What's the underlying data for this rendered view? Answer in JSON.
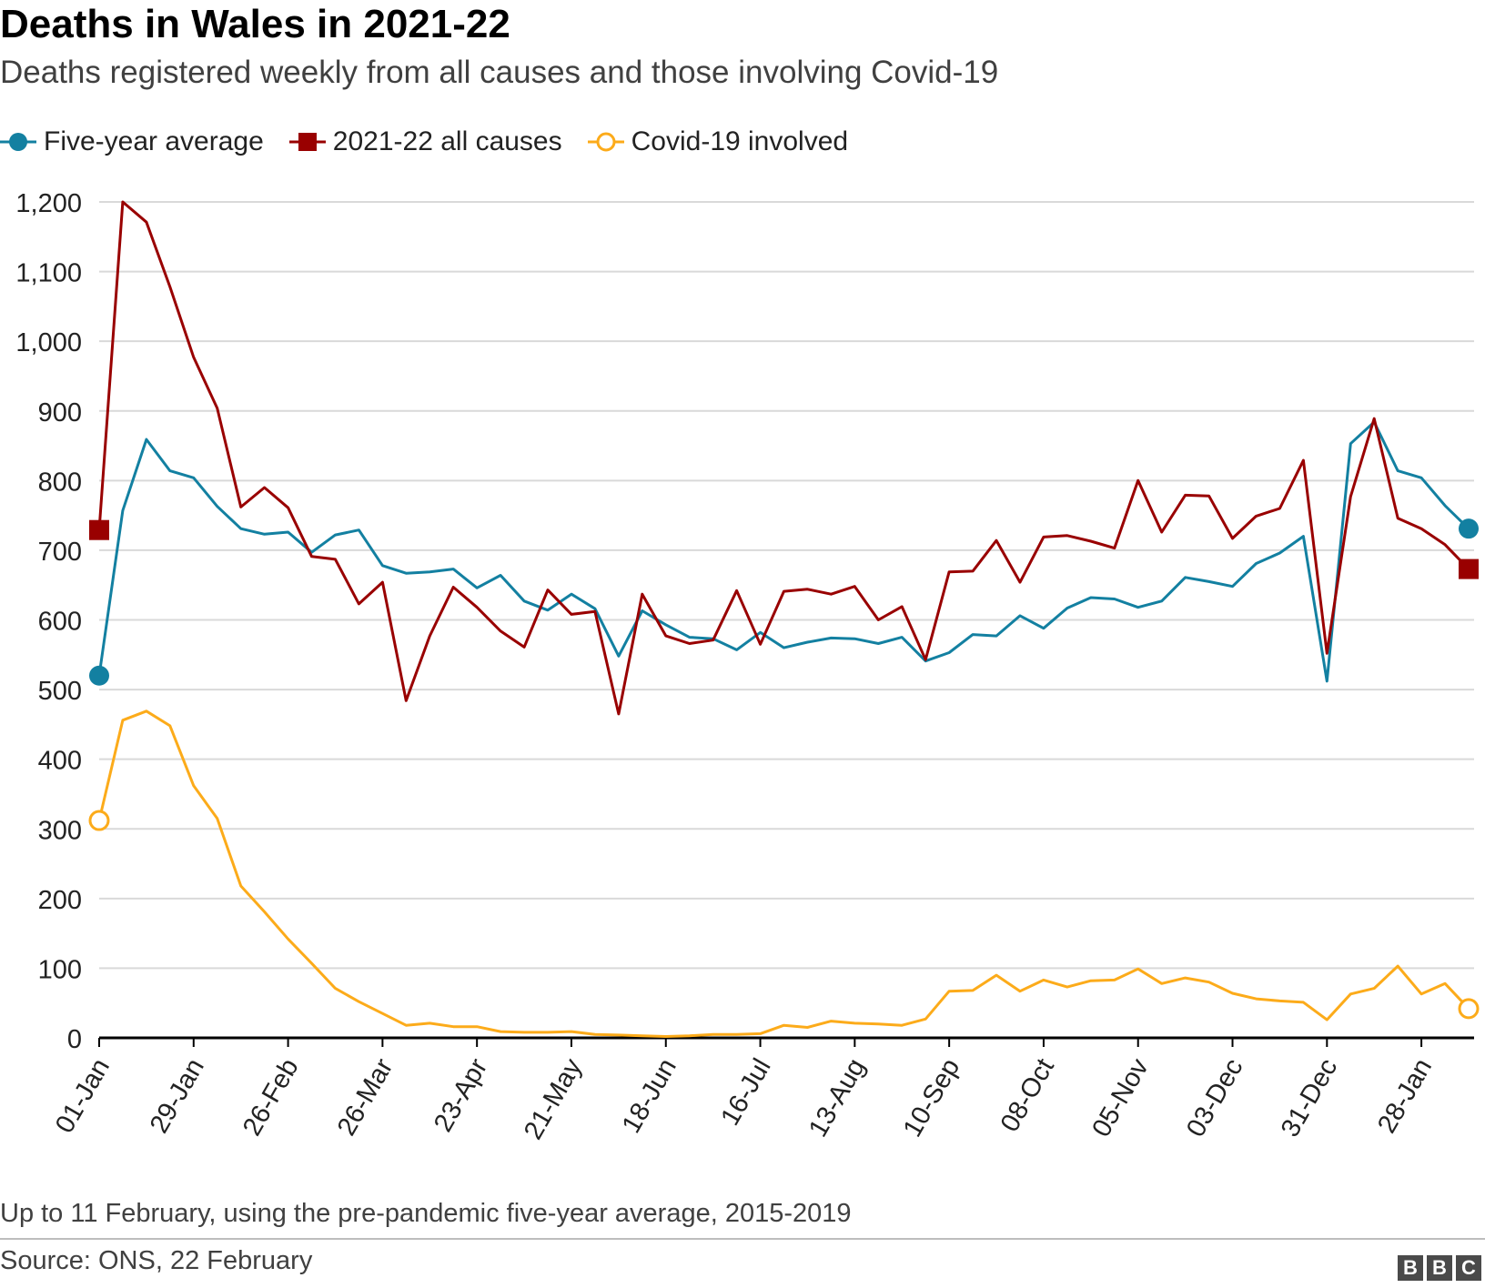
{
  "title": "Deaths in Wales in 2021-22",
  "subtitle": "Deaths registered weekly from all causes and those involving Covid-19",
  "footnote": "Up to 11 February, using the pre-pandemic five-year average, 2015-2019",
  "source": "Source: ONS, 22 February",
  "logo": [
    "B",
    "B",
    "C"
  ],
  "colors": {
    "five_year_avg": "#1380a1",
    "all_causes": "#990000",
    "covid": "#fcab1a",
    "grid": "#d9d9d9",
    "axis": "#000000"
  },
  "chart_data": {
    "type": "line",
    "title": "Deaths in Wales in 2021-22",
    "xlabel": "",
    "ylabel": "",
    "ylim": [
      0,
      1200
    ],
    "yticks": [
      0,
      100,
      200,
      300,
      400,
      500,
      600,
      700,
      800,
      900,
      1000,
      1100,
      1200
    ],
    "ytick_labels": [
      "0",
      "100",
      "200",
      "300",
      "400",
      "500",
      "600",
      "700",
      "800",
      "900",
      "1,000",
      "1,100",
      "1,200"
    ],
    "xtick_labels": [
      "01-Jan",
      "29-Jan",
      "26-Feb",
      "26-Mar",
      "23-Apr",
      "21-May",
      "18-Jun",
      "16-Jul",
      "13-Aug",
      "10-Sep",
      "08-Oct",
      "05-Nov",
      "03-Dec",
      "31-Dec",
      "28-Jan"
    ],
    "xtick_every": 4,
    "legend_position": "top-left",
    "grid": true,
    "series": [
      {
        "name": "Five-year average",
        "color": "#1380a1",
        "marker": "circle-filled",
        "values": [
          520,
          757,
          859,
          814,
          804,
          763,
          731,
          723,
          726,
          697,
          722,
          729,
          678,
          667,
          669,
          673,
          646,
          664,
          627,
          614,
          637,
          616,
          548,
          613,
          593,
          575,
          573,
          557,
          582,
          560,
          568,
          574,
          573,
          566,
          575,
          541,
          553,
          579,
          577,
          606,
          588,
          617,
          632,
          630,
          618,
          627,
          661,
          655,
          648,
          681,
          696,
          720,
          512,
          853,
          884,
          814,
          804,
          764,
          731
        ]
      },
      {
        "name": "2021-22 all causes",
        "color": "#990000",
        "marker": "square-filled",
        "values": [
          729,
          1200,
          1171,
          1078,
          977,
          904,
          762,
          790,
          761,
          691,
          687,
          623,
          654,
          484,
          577,
          647,
          618,
          584,
          561,
          643,
          608,
          612,
          465,
          637,
          577,
          566,
          571,
          642,
          565,
          641,
          644,
          637,
          648,
          600,
          619,
          543,
          669,
          670,
          714,
          654,
          719,
          721,
          713,
          703,
          800,
          726,
          779,
          778,
          717,
          749,
          760,
          829,
          552,
          777,
          889,
          746,
          731,
          708,
          673
        ]
      },
      {
        "name": "Covid-19 involved",
        "color": "#fcab1a",
        "marker": "circle-open",
        "values": [
          312,
          456,
          469,
          448,
          362,
          315,
          218,
          181,
          142,
          107,
          71,
          52,
          35,
          18,
          21,
          16,
          16,
          9,
          8,
          8,
          9,
          5,
          4,
          3,
          2,
          3,
          5,
          5,
          6,
          18,
          15,
          24,
          21,
          20,
          18,
          27,
          67,
          68,
          90,
          67,
          83,
          73,
          82,
          83,
          99,
          78,
          86,
          80,
          64,
          56,
          53,
          51,
          26,
          63,
          71,
          103,
          63,
          78,
          42
        ]
      }
    ]
  }
}
